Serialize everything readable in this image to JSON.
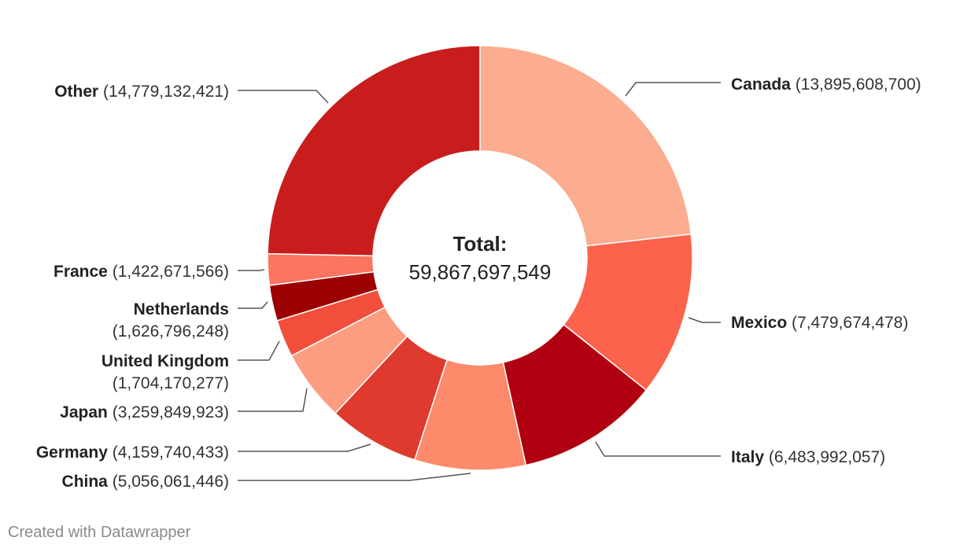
{
  "chart_data": {
    "type": "pie",
    "variant": "donut",
    "center_label": {
      "title": "Total:",
      "value": "59,867,697,549"
    },
    "slices": [
      {
        "name": "Canada",
        "value": 13895608700,
        "display": "(13,895,608,700)",
        "color": "#fcac8f"
      },
      {
        "name": "Mexico",
        "value": 7479674478,
        "display": "(7,479,674,478)",
        "color": "#fc624c"
      },
      {
        "name": "Italy",
        "value": 6483992057,
        "display": "(6,483,992,057)",
        "color": "#b00012"
      },
      {
        "name": "China",
        "value": 5056061446,
        "display": "(5,056,061,446)",
        "color": "#fc8a6b"
      },
      {
        "name": "Germany",
        "value": 4159740433,
        "display": "(4,159,740,433)",
        "color": "#de3a2e"
      },
      {
        "name": "Japan",
        "value": 3259849923,
        "display": "(3,259,849,923)",
        "color": "#fc9d82"
      },
      {
        "name": "United Kingdom",
        "value": 1704170277,
        "display": "(1,704,170,277)",
        "color": "#f24e3c"
      },
      {
        "name": "Netherlands",
        "value": 1626796248,
        "display": "(1,626,796,248)",
        "color": "#9c0000"
      },
      {
        "name": "France",
        "value": 1422671566,
        "display": "(1,422,671,566)",
        "color": "#fc7560"
      },
      {
        "name": "Other",
        "value": 14779132421,
        "display": "(14,779,132,421)",
        "color": "#c91d1d"
      }
    ]
  },
  "footer": {
    "credit": "Created with Datawrapper"
  }
}
